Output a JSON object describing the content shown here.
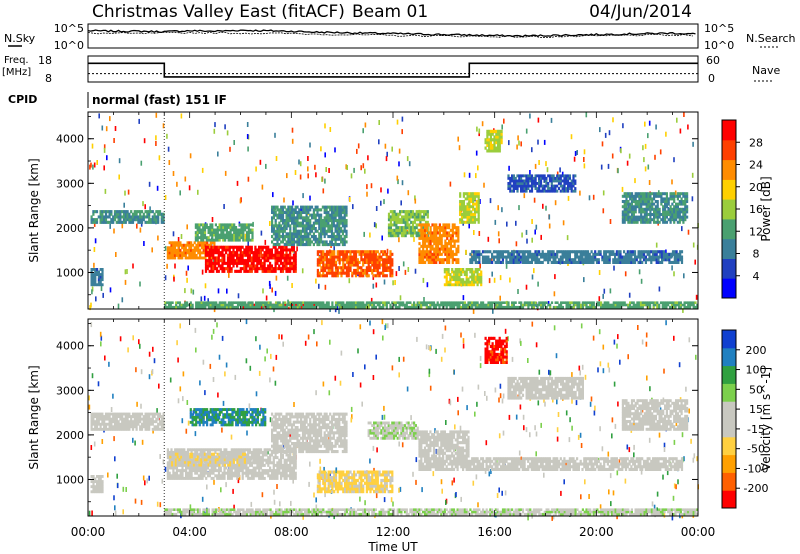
{
  "header": {
    "title": "Christmas Valley East (fitACF)",
    "beam": "Beam 01",
    "date": "04/Jun/2014"
  },
  "summary": {
    "nsky_label": "N.Sky",
    "nsearch_label": "N.Search",
    "freq_label_1": "Freq.",
    "freq_label_2": "[MHz]",
    "nave_label": "Nave",
    "cpid_label": "CPID",
    "cpid_value": "normal (fast) 151 IF",
    "noise_ticks_left": [
      "10^5",
      "10^0"
    ],
    "noise_ticks_right": [
      "10^5",
      "10^0"
    ],
    "freq_ticks": [
      "18",
      "8"
    ],
    "nave_ticks": [
      "60",
      "0"
    ]
  },
  "colors": {
    "power_scale": [
      "#0000ff",
      "#2040c0",
      "#3a7f9a",
      "#4aa070",
      "#9bcd3c",
      "#ffd000",
      "#ff8c00",
      "#ff4000",
      "#ff0000"
    ],
    "velocity_scale": [
      "#ff0000",
      "#ff6000",
      "#ffa000",
      "#ffd040",
      "#c8c8c0",
      "#c8c8c0",
      "#7cd04c",
      "#30a040",
      "#2080c0",
      "#1040d0"
    ]
  },
  "chart_data": [
    {
      "type": "line",
      "panel": "noise",
      "series": [
        {
          "name": "N.Sky",
          "x_hours": [
            0,
            1,
            2,
            3,
            4,
            5,
            6,
            7,
            8,
            9,
            10,
            11,
            12,
            13,
            14,
            15,
            16,
            17,
            18,
            19,
            20,
            21,
            22,
            23,
            24
          ],
          "values_log10": [
            3.6,
            3.5,
            3.5,
            3.4,
            3.6,
            3.5,
            3.7,
            3.6,
            3.5,
            3.3,
            3.2,
            3.1,
            3.0,
            2.9,
            2.8,
            2.7,
            2.6,
            2.5,
            2.6,
            2.7,
            2.8,
            2.9,
            3.0,
            3.1,
            2.9
          ]
        },
        {
          "name": "N.Search",
          "x_hours": [
            0,
            2,
            4,
            6,
            8,
            10,
            12,
            14,
            16,
            18,
            20,
            22,
            24
          ],
          "values_log10": [
            3.1,
            3.0,
            3.2,
            3.1,
            3.0,
            2.8,
            2.6,
            2.5,
            2.4,
            2.3,
            2.5,
            2.7,
            2.6
          ]
        }
      ]
    },
    {
      "type": "line",
      "panel": "frequency",
      "series": [
        {
          "name": "Freq.",
          "x_hours": [
            0,
            3.0,
            3.0,
            15.0,
            15.0,
            24
          ],
          "values": [
            16.5,
            16.5,
            10.3,
            10.3,
            16.5,
            16.5
          ]
        },
        {
          "name": "Nave",
          "x_hours": [
            0,
            24
          ],
          "values": [
            23,
            23
          ]
        }
      ],
      "ylabel": "Freq. [MHz]"
    },
    {
      "type": "heatmap",
      "panel": "power",
      "xlabel": "",
      "ylabel": "Slant Range [km]",
      "xlim_hours": [
        0,
        24
      ],
      "ylim": [
        180,
        4600
      ],
      "xticks": [
        "00:00",
        "04:00",
        "08:00",
        "12:00",
        "16:00",
        "20:00",
        "00:00"
      ],
      "yticks": [
        "1000",
        "2000",
        "3000",
        "4000"
      ],
      "colorbar": {
        "label": "Power [dB]",
        "ticks": [
          "4",
          "8",
          "12",
          "16",
          "20",
          "24",
          "28"
        ],
        "range": [
          0,
          30
        ]
      },
      "regions": [
        {
          "t0": 0.1,
          "t1": 3.0,
          "r0": 2100,
          "r1": 2400,
          "value": 10
        },
        {
          "t0": 0.1,
          "t1": 0.6,
          "r0": 700,
          "r1": 1100,
          "value": 8
        },
        {
          "t0": 3.1,
          "t1": 5.0,
          "r0": 1300,
          "r1": 1700,
          "value": 22
        },
        {
          "t0": 4.6,
          "t1": 8.2,
          "r0": 1000,
          "r1": 1600,
          "value": 28
        },
        {
          "t0": 4.2,
          "t1": 6.5,
          "r0": 1700,
          "r1": 2100,
          "value": 12
        },
        {
          "t0": 7.2,
          "t1": 10.2,
          "r0": 1600,
          "r1": 2500,
          "value": 10
        },
        {
          "t0": 9.0,
          "t1": 12.0,
          "r0": 900,
          "r1": 1500,
          "value": 24
        },
        {
          "t0": 11.8,
          "t1": 13.4,
          "r0": 1800,
          "r1": 2400,
          "value": 14
        },
        {
          "t0": 13.0,
          "t1": 14.6,
          "r0": 1200,
          "r1": 2100,
          "value": 22
        },
        {
          "t0": 14.0,
          "t1": 15.5,
          "r0": 700,
          "r1": 1100,
          "value": 16
        },
        {
          "t0": 14.6,
          "t1": 15.4,
          "r0": 2100,
          "r1": 2800,
          "value": 16
        },
        {
          "t0": 15.6,
          "t1": 16.3,
          "r0": 3700,
          "r1": 4200,
          "value": 16
        },
        {
          "t0": 15.0,
          "t1": 23.4,
          "r0": 1200,
          "r1": 1500,
          "value": 8
        },
        {
          "t0": 16.5,
          "t1": 19.2,
          "r0": 2800,
          "r1": 3200,
          "value": 6
        },
        {
          "t0": 21.0,
          "t1": 23.6,
          "r0": 2100,
          "r1": 2800,
          "value": 10
        },
        {
          "t0": 6.0,
          "t1": 9.0,
          "r0": 180,
          "r1": 300,
          "value": 28
        },
        {
          "t0": 3.0,
          "t1": 24.0,
          "r0": 200,
          "r1": 350,
          "value": 12
        }
      ]
    },
    {
      "type": "heatmap",
      "panel": "velocity",
      "xlabel": "Time UT",
      "ylabel": "Slant Range [km]",
      "xlim_hours": [
        0,
        24
      ],
      "ylim": [
        180,
        4600
      ],
      "xticks": [
        "00:00",
        "04:00",
        "08:00",
        "12:00",
        "16:00",
        "20:00",
        "00:00"
      ],
      "yticks": [
        "1000",
        "2000",
        "3000",
        "4000"
      ],
      "colorbar": {
        "label": "Velocity [m s^-1]",
        "ticks": [
          "200",
          "100",
          "50",
          "15",
          "-15",
          "-50",
          "-100",
          "-200"
        ],
        "range": [
          -250,
          250
        ]
      },
      "regions": [
        {
          "t0": 0.1,
          "t1": 3.0,
          "r0": 2100,
          "r1": 2500,
          "value": 0
        },
        {
          "t0": 0.1,
          "t1": 0.6,
          "r0": 700,
          "r1": 1100,
          "value": 0
        },
        {
          "t0": 3.1,
          "t1": 8.2,
          "r0": 1000,
          "r1": 1700,
          "value": 0
        },
        {
          "t0": 3.2,
          "t1": 6.2,
          "r0": 1300,
          "r1": 1600,
          "value": -40
        },
        {
          "t0": 4.0,
          "t1": 7.0,
          "r0": 2200,
          "r1": 2600,
          "value": 150
        },
        {
          "t0": 7.2,
          "t1": 10.2,
          "r0": 1600,
          "r1": 2500,
          "value": 0
        },
        {
          "t0": 9.0,
          "t1": 12.0,
          "r0": 700,
          "r1": 1200,
          "value": -60
        },
        {
          "t0": 11.0,
          "t1": 13.0,
          "r0": 1900,
          "r1": 2300,
          "value": 40
        },
        {
          "t0": 13.0,
          "t1": 15.0,
          "r0": 1200,
          "r1": 2100,
          "value": 0
        },
        {
          "t0": 15.6,
          "t1": 16.5,
          "r0": 3600,
          "r1": 4200,
          "value": -220
        },
        {
          "t0": 15.0,
          "t1": 23.4,
          "r0": 1200,
          "r1": 1500,
          "value": 0
        },
        {
          "t0": 16.5,
          "t1": 19.5,
          "r0": 2800,
          "r1": 3300,
          "value": 0
        },
        {
          "t0": 21.0,
          "t1": 23.6,
          "r0": 2100,
          "r1": 2800,
          "value": 0
        },
        {
          "t0": 3.0,
          "t1": 24.0,
          "r0": 200,
          "r1": 350,
          "value": 40
        }
      ]
    }
  ]
}
